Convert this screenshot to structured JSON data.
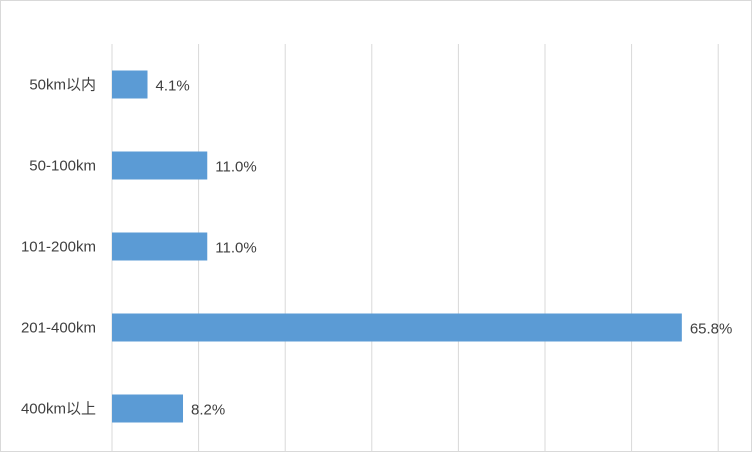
{
  "chart_data": {
    "type": "bar",
    "orientation": "horizontal",
    "categories": [
      "50km以内",
      "50-100km",
      "101-200km",
      "201-400km",
      "400km以上"
    ],
    "values": [
      4.1,
      11.0,
      11.0,
      65.8,
      8.2
    ],
    "data_labels": [
      "4.1%",
      "11.0%",
      "11.0%",
      "65.8%",
      "8.2%"
    ],
    "title": "",
    "xlabel": "",
    "ylabel": "",
    "xlim": [
      0,
      70
    ],
    "x_unit": "%",
    "grid": true,
    "legend": "none",
    "bar_color": "#5b9bd5"
  }
}
